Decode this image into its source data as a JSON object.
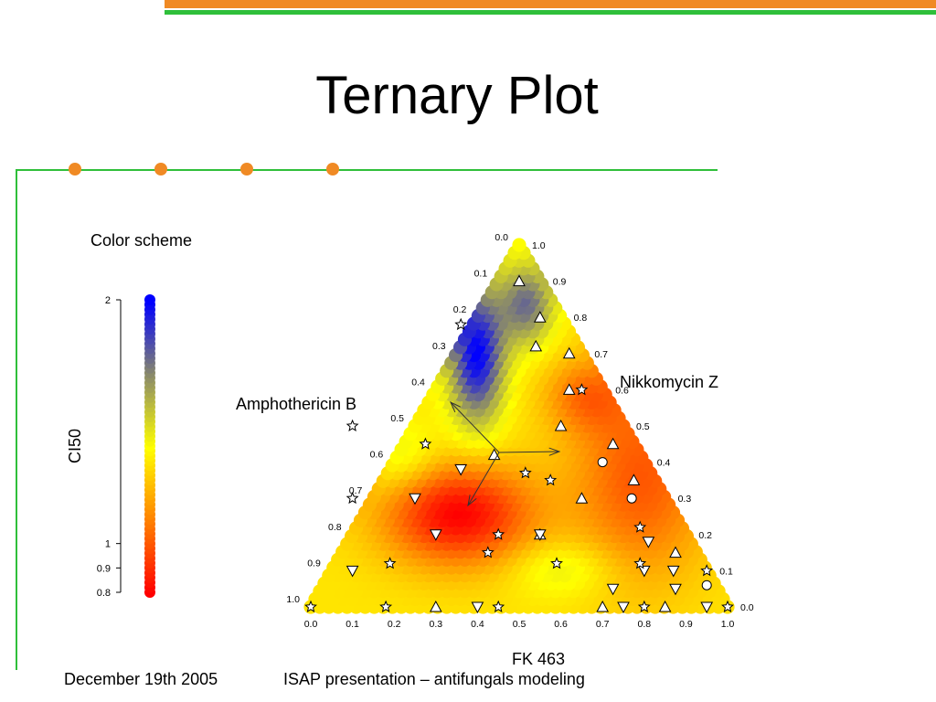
{
  "slide": {
    "title": "Ternary Plot",
    "color_scheme_label": "Color scheme",
    "footer_date": "December 19th 2005",
    "footer_text": "ISAP presentation – antifungals modeling",
    "accent_orange": "#f08a24",
    "accent_green": "#2fbf3a"
  },
  "chart_data": {
    "type": "ternary",
    "labels": {
      "top": "",
      "left": "Amphothericin B",
      "right": "Nikkomycin Z",
      "bottom": "FK 463"
    },
    "left_ticks": [
      "0.0",
      "0.1",
      "0.2",
      "0.3",
      "0.4",
      "0.5",
      "0.6",
      "0.7",
      "0.8",
      "0.9",
      "1.0"
    ],
    "right_ticks": [
      "1.0",
      "0.9",
      "0.8",
      "0.7",
      "0.6",
      "0.5",
      "0.4",
      "0.3",
      "0.2",
      "0.1",
      "0.0"
    ],
    "bottom_ticks": [
      "0.0",
      "0.1",
      "0.2",
      "0.3",
      "0.4",
      "0.5",
      "0.6",
      "0.7",
      "0.8",
      "0.9",
      "1.0"
    ],
    "colorbar": {
      "label": "CI50",
      "range": [
        0.8,
        2
      ],
      "ticks": [
        "2",
        "1",
        "0.9",
        "0.8"
      ],
      "colors": [
        "#ff0000",
        "#ff7f00",
        "#ffff00",
        "#8a8a6a",
        "#0000ff"
      ]
    },
    "markers": [
      {
        "shape": "triangle-up",
        "a": 0.9,
        "b": 0.05
      },
      {
        "shape": "triangle-up",
        "a": 0.8,
        "b": 0.05
      },
      {
        "shape": "triangle-up",
        "a": 0.72,
        "b": 0.1
      },
      {
        "shape": "triangle-up",
        "a": 0.7,
        "b": 0.03
      },
      {
        "shape": "triangle-up",
        "a": 0.6,
        "b": 0.08
      },
      {
        "shape": "triangle-up",
        "a": 0.5,
        "b": 0.15
      },
      {
        "shape": "triangle-up",
        "a": 0.45,
        "b": 0.05
      },
      {
        "shape": "triangle-up",
        "a": 0.42,
        "b": 0.35
      },
      {
        "shape": "triangle-up",
        "a": 0.35,
        "b": 0.05
      },
      {
        "shape": "triangle-up",
        "a": 0.3,
        "b": 0.2
      },
      {
        "shape": "triangle-up",
        "a": 0.2,
        "b": 0.35
      },
      {
        "shape": "triangle-up",
        "a": 0.15,
        "b": 0.05
      },
      {
        "shape": "triangle-up",
        "a": 0.0,
        "b": 0.7
      },
      {
        "shape": "triangle-up",
        "a": 0.0,
        "b": 0.3
      },
      {
        "shape": "triangle-up",
        "a": 0.0,
        "b": 0.15
      },
      {
        "shape": "triangle-down",
        "a": 0.38,
        "b": 0.45
      },
      {
        "shape": "triangle-down",
        "a": 0.3,
        "b": 0.6
      },
      {
        "shape": "triangle-down",
        "a": 0.2,
        "b": 0.35
      },
      {
        "shape": "triangle-down",
        "a": 0.2,
        "b": 0.6
      },
      {
        "shape": "triangle-down",
        "a": 0.1,
        "b": 0.85
      },
      {
        "shape": "triangle-down",
        "a": 0.1,
        "b": 0.15
      },
      {
        "shape": "triangle-down",
        "a": 0.05,
        "b": 0.25
      },
      {
        "shape": "triangle-down",
        "a": 0.0,
        "b": 0.6
      },
      {
        "shape": "triangle-down",
        "a": 0.0,
        "b": 0.25
      },
      {
        "shape": "triangle-down",
        "a": 0.0,
        "b": 0.05
      },
      {
        "shape": "triangle-down",
        "a": 0.05,
        "b": 0.1
      },
      {
        "shape": "triangle-down",
        "a": 0.18,
        "b": 0.1
      },
      {
        "shape": "triangle-down",
        "a": 0.1,
        "b": 0.08
      },
      {
        "shape": "circle",
        "a": 0.4,
        "b": 0.1
      },
      {
        "shape": "circle",
        "a": 0.3,
        "b": 0.08
      },
      {
        "shape": "circle",
        "a": 0.06,
        "b": 0.02
      },
      {
        "shape": "star",
        "a": 0.78,
        "b": 0.25
      },
      {
        "shape": "star",
        "a": 0.5,
        "b": 0.65
      },
      {
        "shape": "star",
        "a": 0.35,
        "b": 0.25
      },
      {
        "shape": "star",
        "a": 0.6,
        "b": 0.05
      },
      {
        "shape": "star",
        "a": 0.45,
        "b": 0.5
      },
      {
        "shape": "star",
        "a": 0.3,
        "b": 0.75
      },
      {
        "shape": "star",
        "a": 0.2,
        "b": 0.45
      },
      {
        "shape": "star",
        "a": 0.15,
        "b": 0.5
      },
      {
        "shape": "star",
        "a": 0.22,
        "b": 0.1
      },
      {
        "shape": "star",
        "a": 0.12,
        "b": 0.75
      },
      {
        "shape": "star",
        "a": 0.12,
        "b": 0.35
      },
      {
        "shape": "star",
        "a": 0.12,
        "b": 0.15
      },
      {
        "shape": "star",
        "a": 0.1,
        "b": 0.0
      },
      {
        "shape": "star",
        "a": 0.0,
        "b": 0.0
      },
      {
        "shape": "star",
        "a": 0.0,
        "b": 0.82
      },
      {
        "shape": "star",
        "a": 0.0,
        "b": 0.55
      },
      {
        "shape": "star",
        "a": 0.0,
        "b": 0.2
      },
      {
        "shape": "star",
        "a": 0.0,
        "b": 1.0
      },
      {
        "shape": "star",
        "a": 0.37,
        "b": 0.3
      }
    ]
  }
}
